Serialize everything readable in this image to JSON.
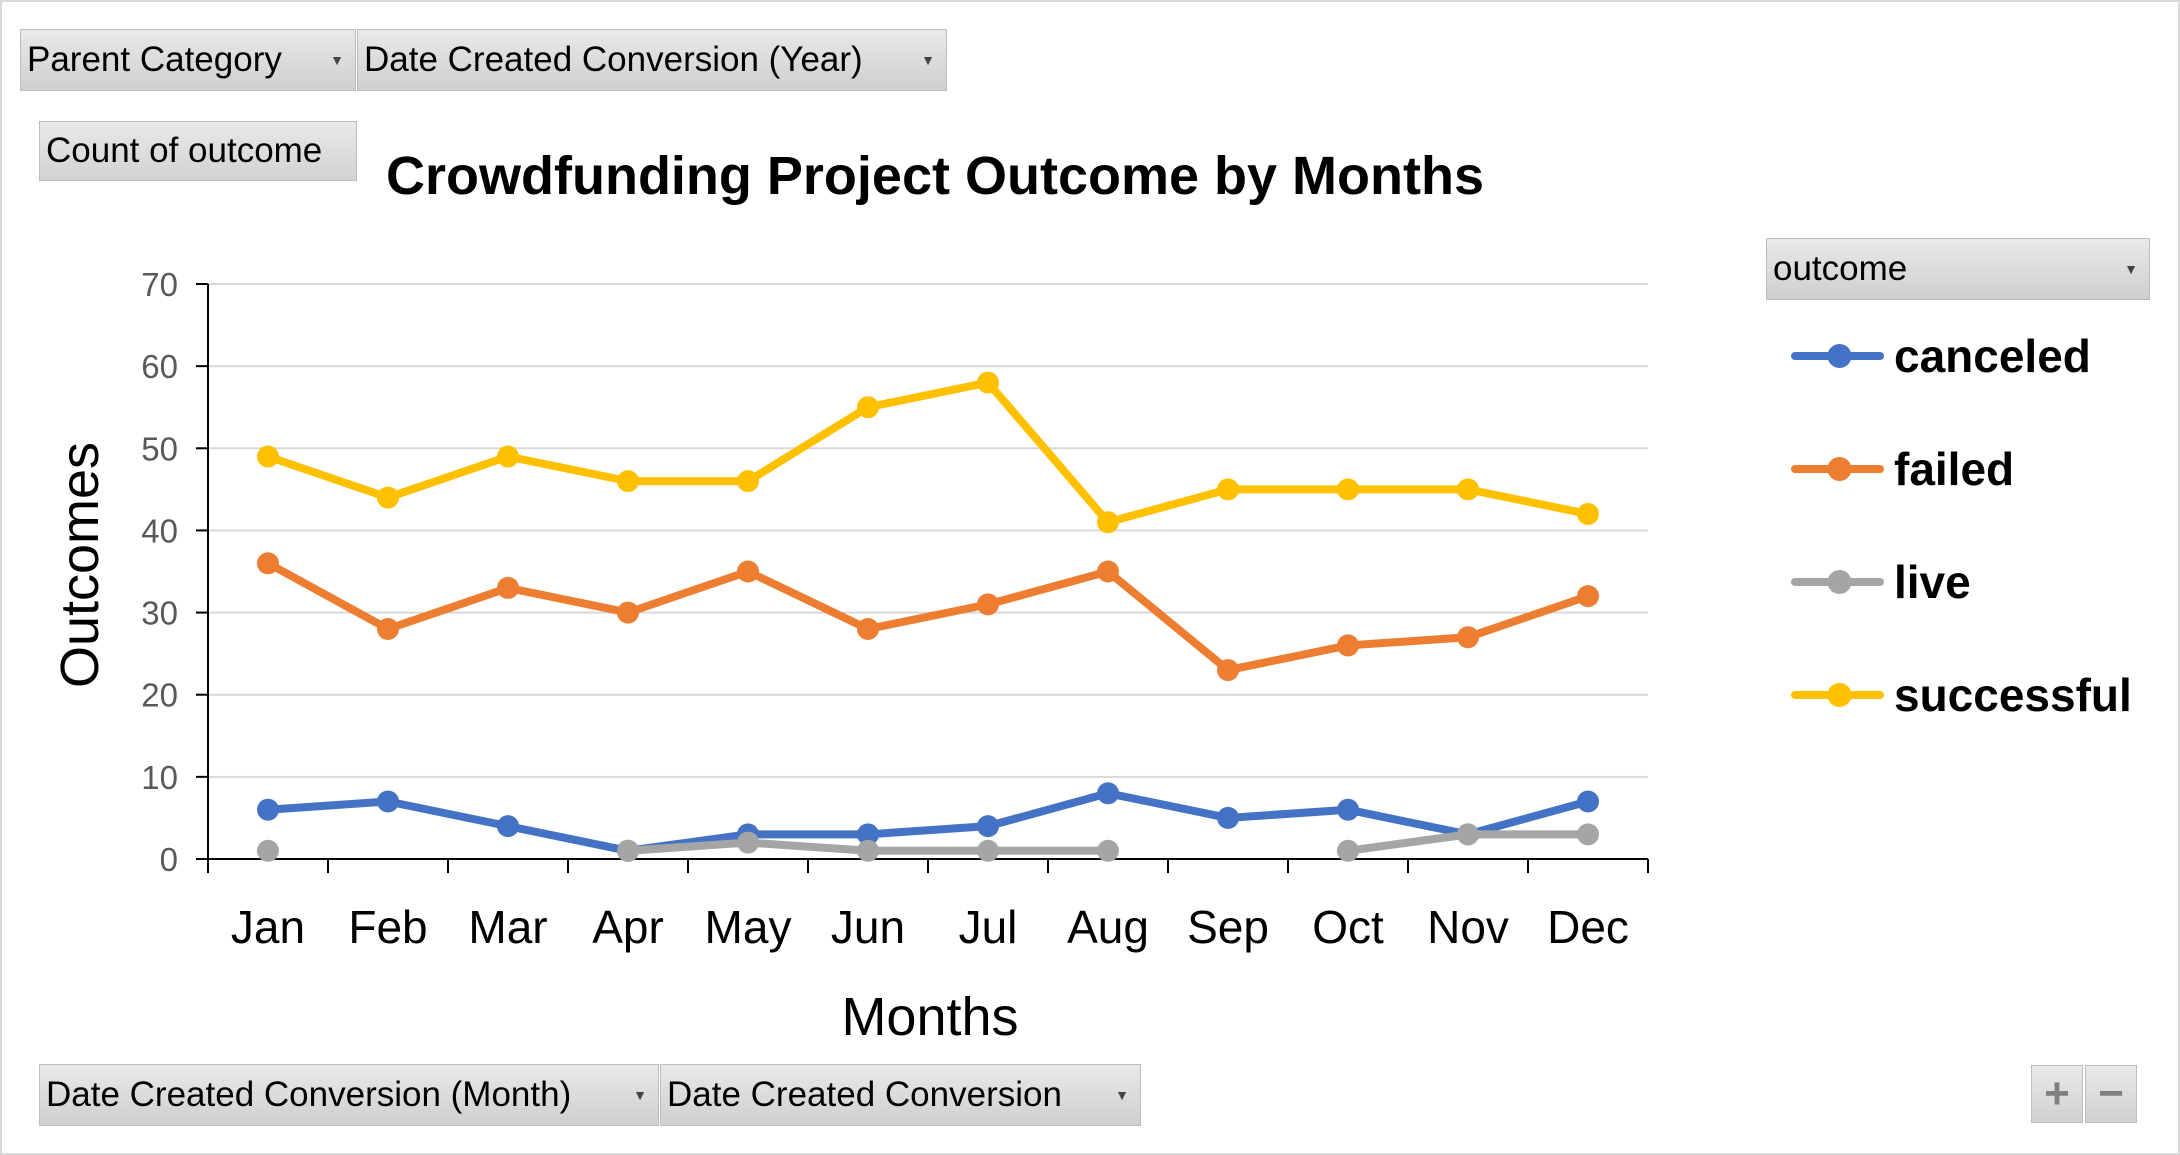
{
  "filters": {
    "parent_category": "Parent Category",
    "date_year": "Date Created Conversion (Year)",
    "values_field": "Count of outcome",
    "legend_field": "outcome",
    "axis_month": "Date Created Conversion (Month)",
    "axis_date": "Date Created Conversion",
    "zoom_in": "+",
    "zoom_out": "−"
  },
  "colors": {
    "canceled": "#4472C4",
    "failed": "#ED7D31",
    "live": "#A5A5A5",
    "successful": "#FFC000",
    "grid": "#d9d9d9",
    "axis": "#000000",
    "tick_text": "#595959"
  },
  "chart_data": {
    "type": "line",
    "title": "Crowdfunding Project Outcome by Months",
    "xlabel": "Months",
    "ylabel": "Outcomes",
    "ylim": [
      0,
      70
    ],
    "yticks": [
      0,
      10,
      20,
      30,
      40,
      50,
      60,
      70
    ],
    "categories": [
      "Jan",
      "Feb",
      "Mar",
      "Apr",
      "May",
      "Jun",
      "Jul",
      "Aug",
      "Sep",
      "Oct",
      "Nov",
      "Dec"
    ],
    "series": [
      {
        "name": "canceled",
        "values": [
          6,
          7,
          4,
          1,
          3,
          3,
          4,
          8,
          5,
          6,
          3,
          7
        ]
      },
      {
        "name": "failed",
        "values": [
          36,
          28,
          33,
          30,
          35,
          28,
          31,
          35,
          23,
          26,
          27,
          32
        ]
      },
      {
        "name": "live",
        "values": [
          1,
          null,
          null,
          1,
          2,
          1,
          1,
          1,
          null,
          1,
          3,
          3
        ]
      },
      {
        "name": "successful",
        "values": [
          49,
          44,
          49,
          46,
          46,
          55,
          58,
          41,
          45,
          45,
          45,
          42
        ]
      }
    ],
    "grid": true,
    "legend": "right"
  }
}
